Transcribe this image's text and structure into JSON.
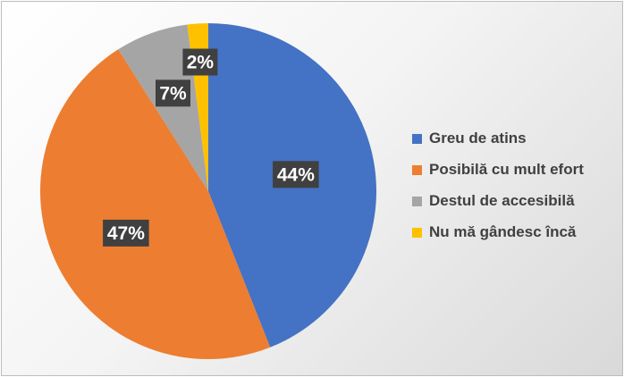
{
  "chart_data": {
    "type": "pie",
    "categories": [
      "Greu de atins",
      "Posibilă cu mult efort",
      "Destul de accesibilă",
      "Nu mă gândesc încă"
    ],
    "values": [
      44,
      47,
      7,
      2
    ],
    "data_labels": [
      "44%",
      "47%",
      "7%",
      "2%"
    ],
    "colors": [
      "#4472C4",
      "#ED7D31",
      "#A5A5A5",
      "#FFC000"
    ],
    "legend_position": "right",
    "start": "top, clockwise"
  }
}
